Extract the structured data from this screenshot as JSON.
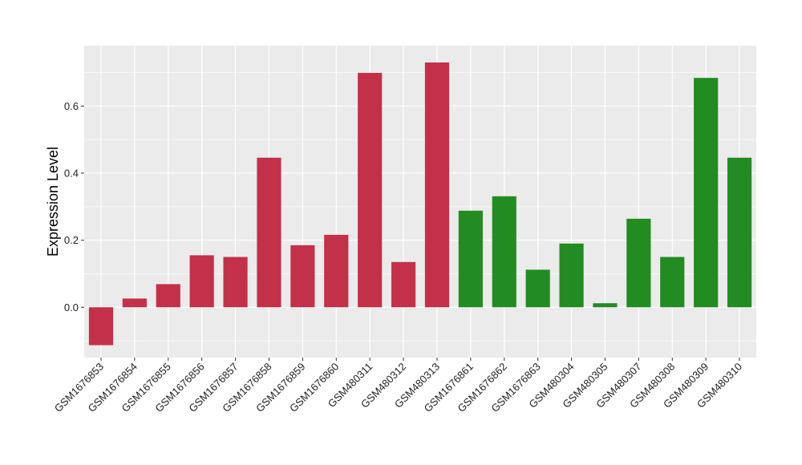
{
  "chart_data": {
    "type": "bar",
    "title": "",
    "xlabel": "",
    "ylabel": "Expression Level",
    "ylim": [
      -0.15,
      0.78
    ],
    "yticks": [
      0.0,
      0.2,
      0.4,
      0.6
    ],
    "ytick_labels": [
      "0.0",
      "0.2",
      "0.4",
      "0.6"
    ],
    "grid": true,
    "legend": "none",
    "colors": {
      "group_red": "#c3304a",
      "group_green": "#228b22",
      "panel_bg": "#ebebeb",
      "grid": "#ffffff"
    },
    "categories": [
      "GSM1676853",
      "GSM1676854",
      "GSM1676855",
      "GSM1676856",
      "GSM1676857",
      "GSM1676858",
      "GSM1676859",
      "GSM1676860",
      "GSM480311",
      "GSM480312",
      "GSM480313",
      "GSM1676861",
      "GSM1676862",
      "GSM1676863",
      "GSM480304",
      "GSM480305",
      "GSM480307",
      "GSM480308",
      "GSM480309",
      "GSM480310"
    ],
    "values": [
      -0.113,
      0.026,
      0.069,
      0.155,
      0.15,
      0.446,
      0.185,
      0.216,
      0.699,
      0.135,
      0.73,
      0.288,
      0.331,
      0.112,
      0.19,
      0.012,
      0.264,
      0.15,
      0.684,
      0.446
    ],
    "bar_groups": [
      "red",
      "red",
      "red",
      "red",
      "red",
      "red",
      "red",
      "red",
      "red",
      "red",
      "red",
      "green",
      "green",
      "green",
      "green",
      "green",
      "green",
      "green",
      "green",
      "green"
    ]
  }
}
